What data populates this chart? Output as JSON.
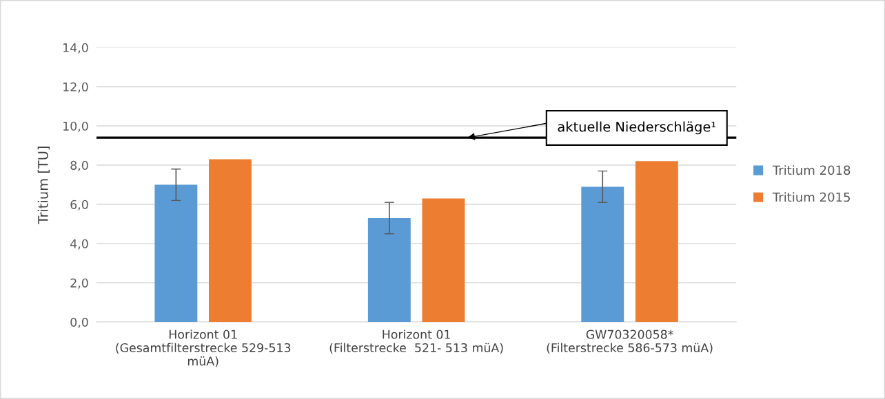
{
  "chart_data": {
    "type": "bar",
    "ylabel": "Tritium [TU]",
    "categories": [
      "Horizont 01\n(Gesamtfilterstrecke 529-513\nmüA)",
      "Horizont 01\n(Filterstrecke  521- 513 müA)",
      "GW70320058*\n(Filterstrecke 586-573 müA)"
    ],
    "series": [
      {
        "name": "Tritium 2018",
        "color": "#5b9bd5",
        "values": [
          7.0,
          5.3,
          6.9
        ],
        "errors": [
          [
            6.2,
            7.8
          ],
          [
            4.5,
            6.1
          ],
          [
            6.1,
            7.7
          ]
        ]
      },
      {
        "name": "Tritium 2015",
        "color": "#ed7d31",
        "values": [
          8.3,
          6.3,
          8.2
        ]
      }
    ],
    "ylim": [
      0,
      14
    ],
    "yticks": [
      {
        "value": 0,
        "label": "0,0"
      },
      {
        "value": 2,
        "label": "2,0"
      },
      {
        "value": 4,
        "label": "4,0"
      },
      {
        "value": 6,
        "label": "6,0"
      },
      {
        "value": 8,
        "label": "8,0"
      },
      {
        "value": 10,
        "label": "10,0"
      },
      {
        "value": 12,
        "label": "12,0"
      },
      {
        "value": 14,
        "label": "14,0"
      }
    ],
    "ref_lines": [
      {
        "axis": "y",
        "value": 9.4,
        "color": "#000000"
      }
    ],
    "annotations": [
      {
        "text": "aktuelle Niederschläge¹",
        "y": 9.4
      }
    ],
    "grid": "y",
    "legend": "right"
  }
}
